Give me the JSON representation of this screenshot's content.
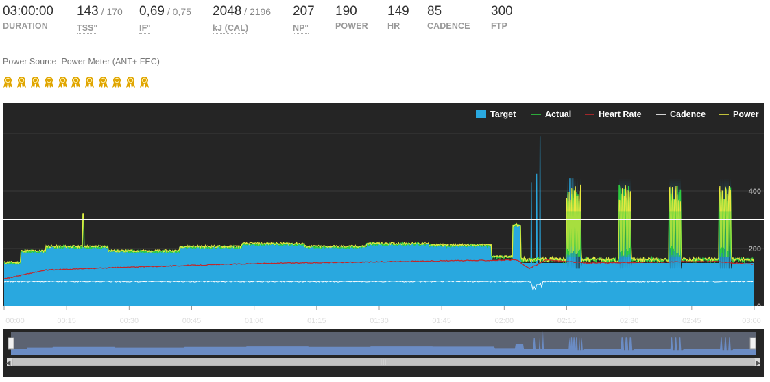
{
  "metrics": [
    {
      "value": "03:00:00",
      "sub": "",
      "label": "DURATION",
      "dotted": false
    },
    {
      "value": "143",
      "sub": " / 170",
      "label": "TSS°",
      "dotted": true
    },
    {
      "value": "0,69",
      "sub": " / 0,75",
      "label": "IF°",
      "dotted": true
    },
    {
      "value": "2048",
      "sub": " / 2196",
      "label": "kJ (CAL)",
      "dotted": true
    },
    {
      "value": "207",
      "sub": "",
      "label": "NP°",
      "dotted": true
    },
    {
      "value": "190",
      "sub": "",
      "label": "POWER",
      "dotted": false
    },
    {
      "value": "149",
      "sub": "",
      "label": "HR",
      "dotted": false
    },
    {
      "value": "85",
      "sub": "",
      "label": "CADENCE",
      "dotted": false
    },
    {
      "value": "300",
      "sub": "",
      "label": "FTP",
      "dotted": false
    }
  ],
  "power_source": {
    "label": "Power Source",
    "value": "Power Meter (ANT+ FEC)"
  },
  "medals": {
    "count": 11,
    "icon": "award-medal-icon",
    "color": "#e0a500"
  },
  "colors": {
    "background": "#252525",
    "target": "#29a8df",
    "actual": "#2ecc40",
    "heart_rate": "#c0282b",
    "cadence": "#ffffff",
    "power": "#e8e840",
    "navigator": "#6b8cc4"
  },
  "chart_data": {
    "type": "line",
    "legend": [
      "Target",
      "Actual",
      "Heart Rate",
      "Cadence",
      "Power"
    ],
    "legend_position": "top-right",
    "x_ticks": [
      "00:00",
      "00:15",
      "00:30",
      "00:45",
      "01:00",
      "01:15",
      "01:30",
      "01:45",
      "02:00",
      "02:15",
      "02:30",
      "02:45",
      "03:00"
    ],
    "y_ticks": [
      "400",
      "200",
      "0"
    ],
    "ftp_line": 300,
    "ylim": [
      0,
      600
    ],
    "xlim_minutes": [
      0,
      180
    ],
    "target_watts": [
      [
        0,
        150
      ],
      [
        4,
        150
      ],
      [
        4,
        190
      ],
      [
        10,
        190
      ],
      [
        10,
        205
      ],
      [
        25,
        205
      ],
      [
        25,
        190
      ],
      [
        42,
        190
      ],
      [
        42,
        205
      ],
      [
        57,
        205
      ],
      [
        57,
        215
      ],
      [
        72,
        215
      ],
      [
        72,
        205
      ],
      [
        87,
        205
      ],
      [
        87,
        215
      ],
      [
        102,
        215
      ],
      [
        102,
        210
      ],
      [
        117,
        210
      ],
      [
        117,
        160
      ],
      [
        122,
        160
      ],
      [
        122,
        280
      ],
      [
        124,
        280
      ],
      [
        124,
        150
      ],
      [
        180,
        150
      ]
    ],
    "intervals_watts": {
      "peak": 445,
      "low": 130,
      "bursts": [
        [
          135,
          138.5
        ],
        [
          147.5,
          150.5
        ],
        [
          159.5,
          162.5
        ],
        [
          171.5,
          174.5
        ]
      ]
    },
    "sprints_watts": [
      [
        126.5,
        430
      ],
      [
        127.8,
        460
      ],
      [
        128.6,
        590
      ]
    ],
    "power_spike": {
      "minute": 19,
      "watts": 320
    },
    "heart_rate_bpm": [
      [
        0,
        95
      ],
      [
        10,
        125
      ],
      [
        30,
        135
      ],
      [
        60,
        148
      ],
      [
        100,
        156
      ],
      [
        123,
        160
      ],
      [
        126,
        130
      ],
      [
        130,
        160
      ],
      [
        140,
        150
      ],
      [
        170,
        155
      ],
      [
        180,
        145
      ]
    ],
    "cadence_rpm": 85,
    "navigator_labels": "III"
  }
}
